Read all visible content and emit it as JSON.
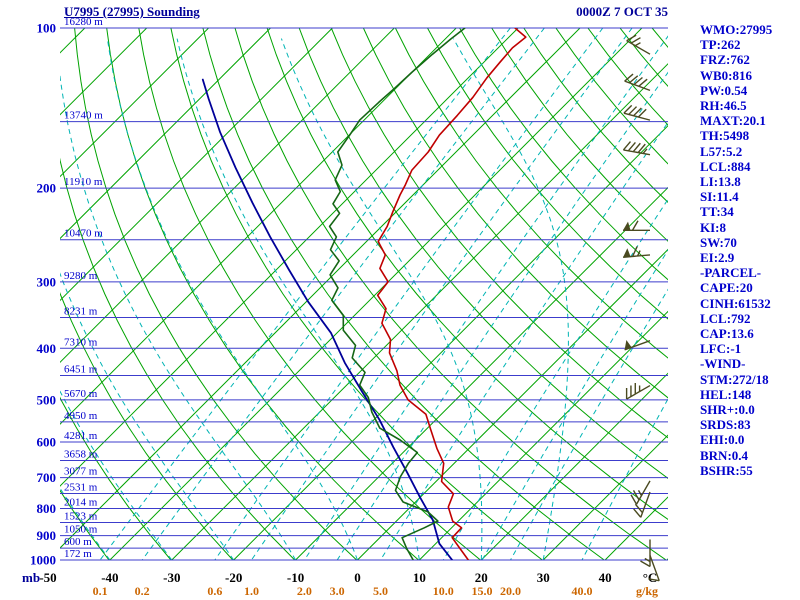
{
  "header": {
    "title": "U7995 (27995) Sounding",
    "datetime": "0000Z 7 OCT 35"
  },
  "axes": {
    "pressure_unit": "mb",
    "temperature_unit": "°C",
    "mixing_ratio_unit": "g/kg",
    "pressure_labels_mb": [
      100,
      200,
      300,
      400,
      500,
      600,
      700,
      800,
      900,
      1000
    ],
    "temperature_labels_c": [
      -50,
      -40,
      -30,
      -20,
      -10,
      0,
      10,
      20,
      30,
      40
    ],
    "mixing_ratio_labels": [
      "0.1",
      "0.2",
      "0.6",
      "1.0",
      "2.0",
      "3.0",
      "5.0",
      "10.0",
      "15.0",
      "20.0",
      "40.0"
    ]
  },
  "indices_panel": [
    "WMO:27995",
    "TP:262",
    "FRZ:762",
    "WB0:816",
    "PW:0.54",
    "RH:46.5",
    "MAXT:20.1",
    "TH:5498",
    "L57:5.2",
    "LCL:884",
    "LI:13.8",
    "SI:11.4",
    "TT:34",
    "KI:8",
    "SW:70",
    "EI:2.9",
    "-PARCEL-",
    "CAPE:20",
    "CINH:61532",
    "LCL:792",
    "CAP:13.6",
    "LFC:-1",
    "-WIND-",
    "STM:272/18",
    "HEL:148",
    "SHR+:0.0",
    "SRDS:83",
    "EHI:0.0",
    "BRN:0.4",
    "BSHR:55"
  ],
  "chart_data": {
    "type": "skewt-sounding",
    "pressure_levels_mb": [
      100,
      150,
      200,
      250,
      300,
      350,
      400,
      450,
      500,
      550,
      600,
      650,
      700,
      750,
      800,
      850,
      900,
      950,
      1000
    ],
    "height_labels_m": [
      "16280 m",
      "13740 m",
      "11910 m",
      "10470 m",
      "9280 m",
      "8231 m",
      "7310 m",
      "6451 m",
      "5670 m",
      "4950 m",
      "4281 m",
      "3658 m",
      "3077 m",
      "2531 m",
      "2014 m",
      "1523 m",
      "1050 m",
      "600 m",
      "172 m"
    ],
    "temperature_profile_p_c": [
      [
        1000,
        17.9
      ],
      [
        950,
        14.6
      ],
      [
        908,
        11.7
      ],
      [
        870,
        11.6
      ],
      [
        845,
        9.1
      ],
      [
        795,
        6.1
      ],
      [
        751,
        4.8
      ],
      [
        712,
        0.9
      ],
      [
        658,
        -1.7
      ],
      [
        617,
        -5.2
      ],
      [
        568,
        -9.3
      ],
      [
        532,
        -12.5
      ],
      [
        500,
        -17.7
      ],
      [
        469,
        -21.4
      ],
      [
        441,
        -24.2
      ],
      [
        408,
        -28.3
      ],
      [
        385,
        -30.3
      ],
      [
        359,
        -34.3
      ],
      [
        337,
        -36.0
      ],
      [
        318,
        -39.5
      ],
      [
        300,
        -40.0
      ],
      [
        283,
        -43.5
      ],
      [
        267,
        -44.8
      ],
      [
        252,
        -48.1
      ],
      [
        236,
        -49.1
      ],
      [
        222,
        -50.5
      ],
      [
        206,
        -52.1
      ],
      [
        197,
        -52.9
      ],
      [
        185,
        -54.2
      ],
      [
        171,
        -54.5
      ],
      [
        159,
        -55.4
      ],
      [
        146,
        -55.7
      ],
      [
        135,
        -56.1
      ],
      [
        124,
        -57.0
      ],
      [
        116,
        -57.4
      ],
      [
        109,
        -57.7
      ],
      [
        104,
        -57.3
      ],
      [
        100,
        -60.5
      ]
    ],
    "dewpoint_profile_p_c": [
      [
        1000,
        9.0
      ],
      [
        950,
        6.0
      ],
      [
        908,
        3.6
      ],
      [
        870,
        5.6
      ],
      [
        845,
        6.7
      ],
      [
        812,
        3.6
      ],
      [
        778,
        -2.0
      ],
      [
        740,
        -5.1
      ],
      [
        698,
        -6.5
      ],
      [
        658,
        -7.4
      ],
      [
        628,
        -7.7
      ],
      [
        595,
        -12.5
      ],
      [
        565,
        -17.7
      ],
      [
        527,
        -21.6
      ],
      [
        495,
        -24.5
      ],
      [
        469,
        -27.9
      ],
      [
        444,
        -29.1
      ],
      [
        417,
        -33.5
      ],
      [
        395,
        -35.0
      ],
      [
        370,
        -39.4
      ],
      [
        347,
        -41.8
      ],
      [
        325,
        -46.1
      ],
      [
        308,
        -47.1
      ],
      [
        291,
        -50.5
      ],
      [
        274,
        -51.3
      ],
      [
        261,
        -54.5
      ],
      [
        247,
        -55.6
      ],
      [
        236,
        -58.4
      ],
      [
        223,
        -58.9
      ],
      [
        214,
        -61.5
      ],
      [
        203,
        -62.3
      ],
      [
        193,
        -65.0
      ],
      [
        181,
        -66.3
      ],
      [
        171,
        -69.1
      ],
      [
        159,
        -69.9
      ],
      [
        149,
        -70.7
      ],
      [
        138,
        -70.5
      ],
      [
        130,
        -70.2
      ],
      [
        121,
        -70.0
      ],
      [
        112,
        -69.6
      ],
      [
        105,
        -69.1
      ],
      [
        100,
        -68.6
      ]
    ],
    "parcel_trace_p_c": [
      [
        1000,
        15.3
      ],
      [
        932,
        10.6
      ],
      [
        841,
        5.7
      ],
      [
        764,
        0.1
      ],
      [
        685,
        -6.1
      ],
      [
        614,
        -12.4
      ],
      [
        545,
        -19.1
      ],
      [
        483,
        -26.4
      ],
      [
        426,
        -33.9
      ],
      [
        374,
        -41.0
      ],
      [
        327,
        -49.7
      ],
      [
        285,
        -57.9
      ],
      [
        247,
        -66.3
      ],
      [
        213,
        -74.7
      ],
      [
        183,
        -83.1
      ],
      [
        157,
        -91.3
      ],
      [
        136,
        -98.5
      ],
      [
        125,
        -102.6
      ]
    ],
    "wind_barbs": [
      {
        "p": 980,
        "dir": 160,
        "spd": 10
      },
      {
        "p": 915,
        "dir": 180,
        "spd": 15
      },
      {
        "p": 745,
        "dir": 200,
        "spd": 20
      },
      {
        "p": 710,
        "dir": 210,
        "spd": 25
      },
      {
        "p": 470,
        "dir": 240,
        "spd": 35
      },
      {
        "p": 387,
        "dir": 250,
        "spd": 50
      },
      {
        "p": 267,
        "dir": 265,
        "spd": 65
      },
      {
        "p": 240,
        "dir": 270,
        "spd": 60
      },
      {
        "p": 173,
        "dir": 280,
        "spd": 45
      },
      {
        "p": 149,
        "dir": 285,
        "spd": 40
      },
      {
        "p": 131,
        "dir": 290,
        "spd": 40
      },
      {
        "p": 112,
        "dir": 300,
        "spd": 25
      }
    ],
    "isotherms_c": {
      "min": -130,
      "max": 50,
      "step": 10
    },
    "dry_adiabats_theta_k": {
      "min": 233,
      "max": 453,
      "step": 10
    },
    "moist_adiabats_thetaw_c": [
      -40,
      -30,
      -20,
      -10,
      0,
      10,
      20,
      30
    ],
    "mixing_ratio_lines_gkg": [
      0.1,
      0.2,
      0.6,
      1,
      2,
      3,
      5,
      10,
      15,
      20,
      40
    ],
    "axis_ranges": {
      "pressure_mb": [
        100,
        1000
      ],
      "temp_at_1000mb_c": [
        -52,
        50
      ]
    },
    "grid": true,
    "colors": {
      "pressure_line": "#3c3ccc",
      "isotherm": "#00a300",
      "dry_adiabat": "#00a300",
      "moist_line": "#00b4b4",
      "temperature": "#c00000",
      "dewpoint": "#156615",
      "parcel": "#000099",
      "wind_barb": "#4a4a20",
      "label_blue": "#0000cc",
      "label_navy": "#000099",
      "label_black": "#000000",
      "label_orange": "#cc6600"
    }
  }
}
